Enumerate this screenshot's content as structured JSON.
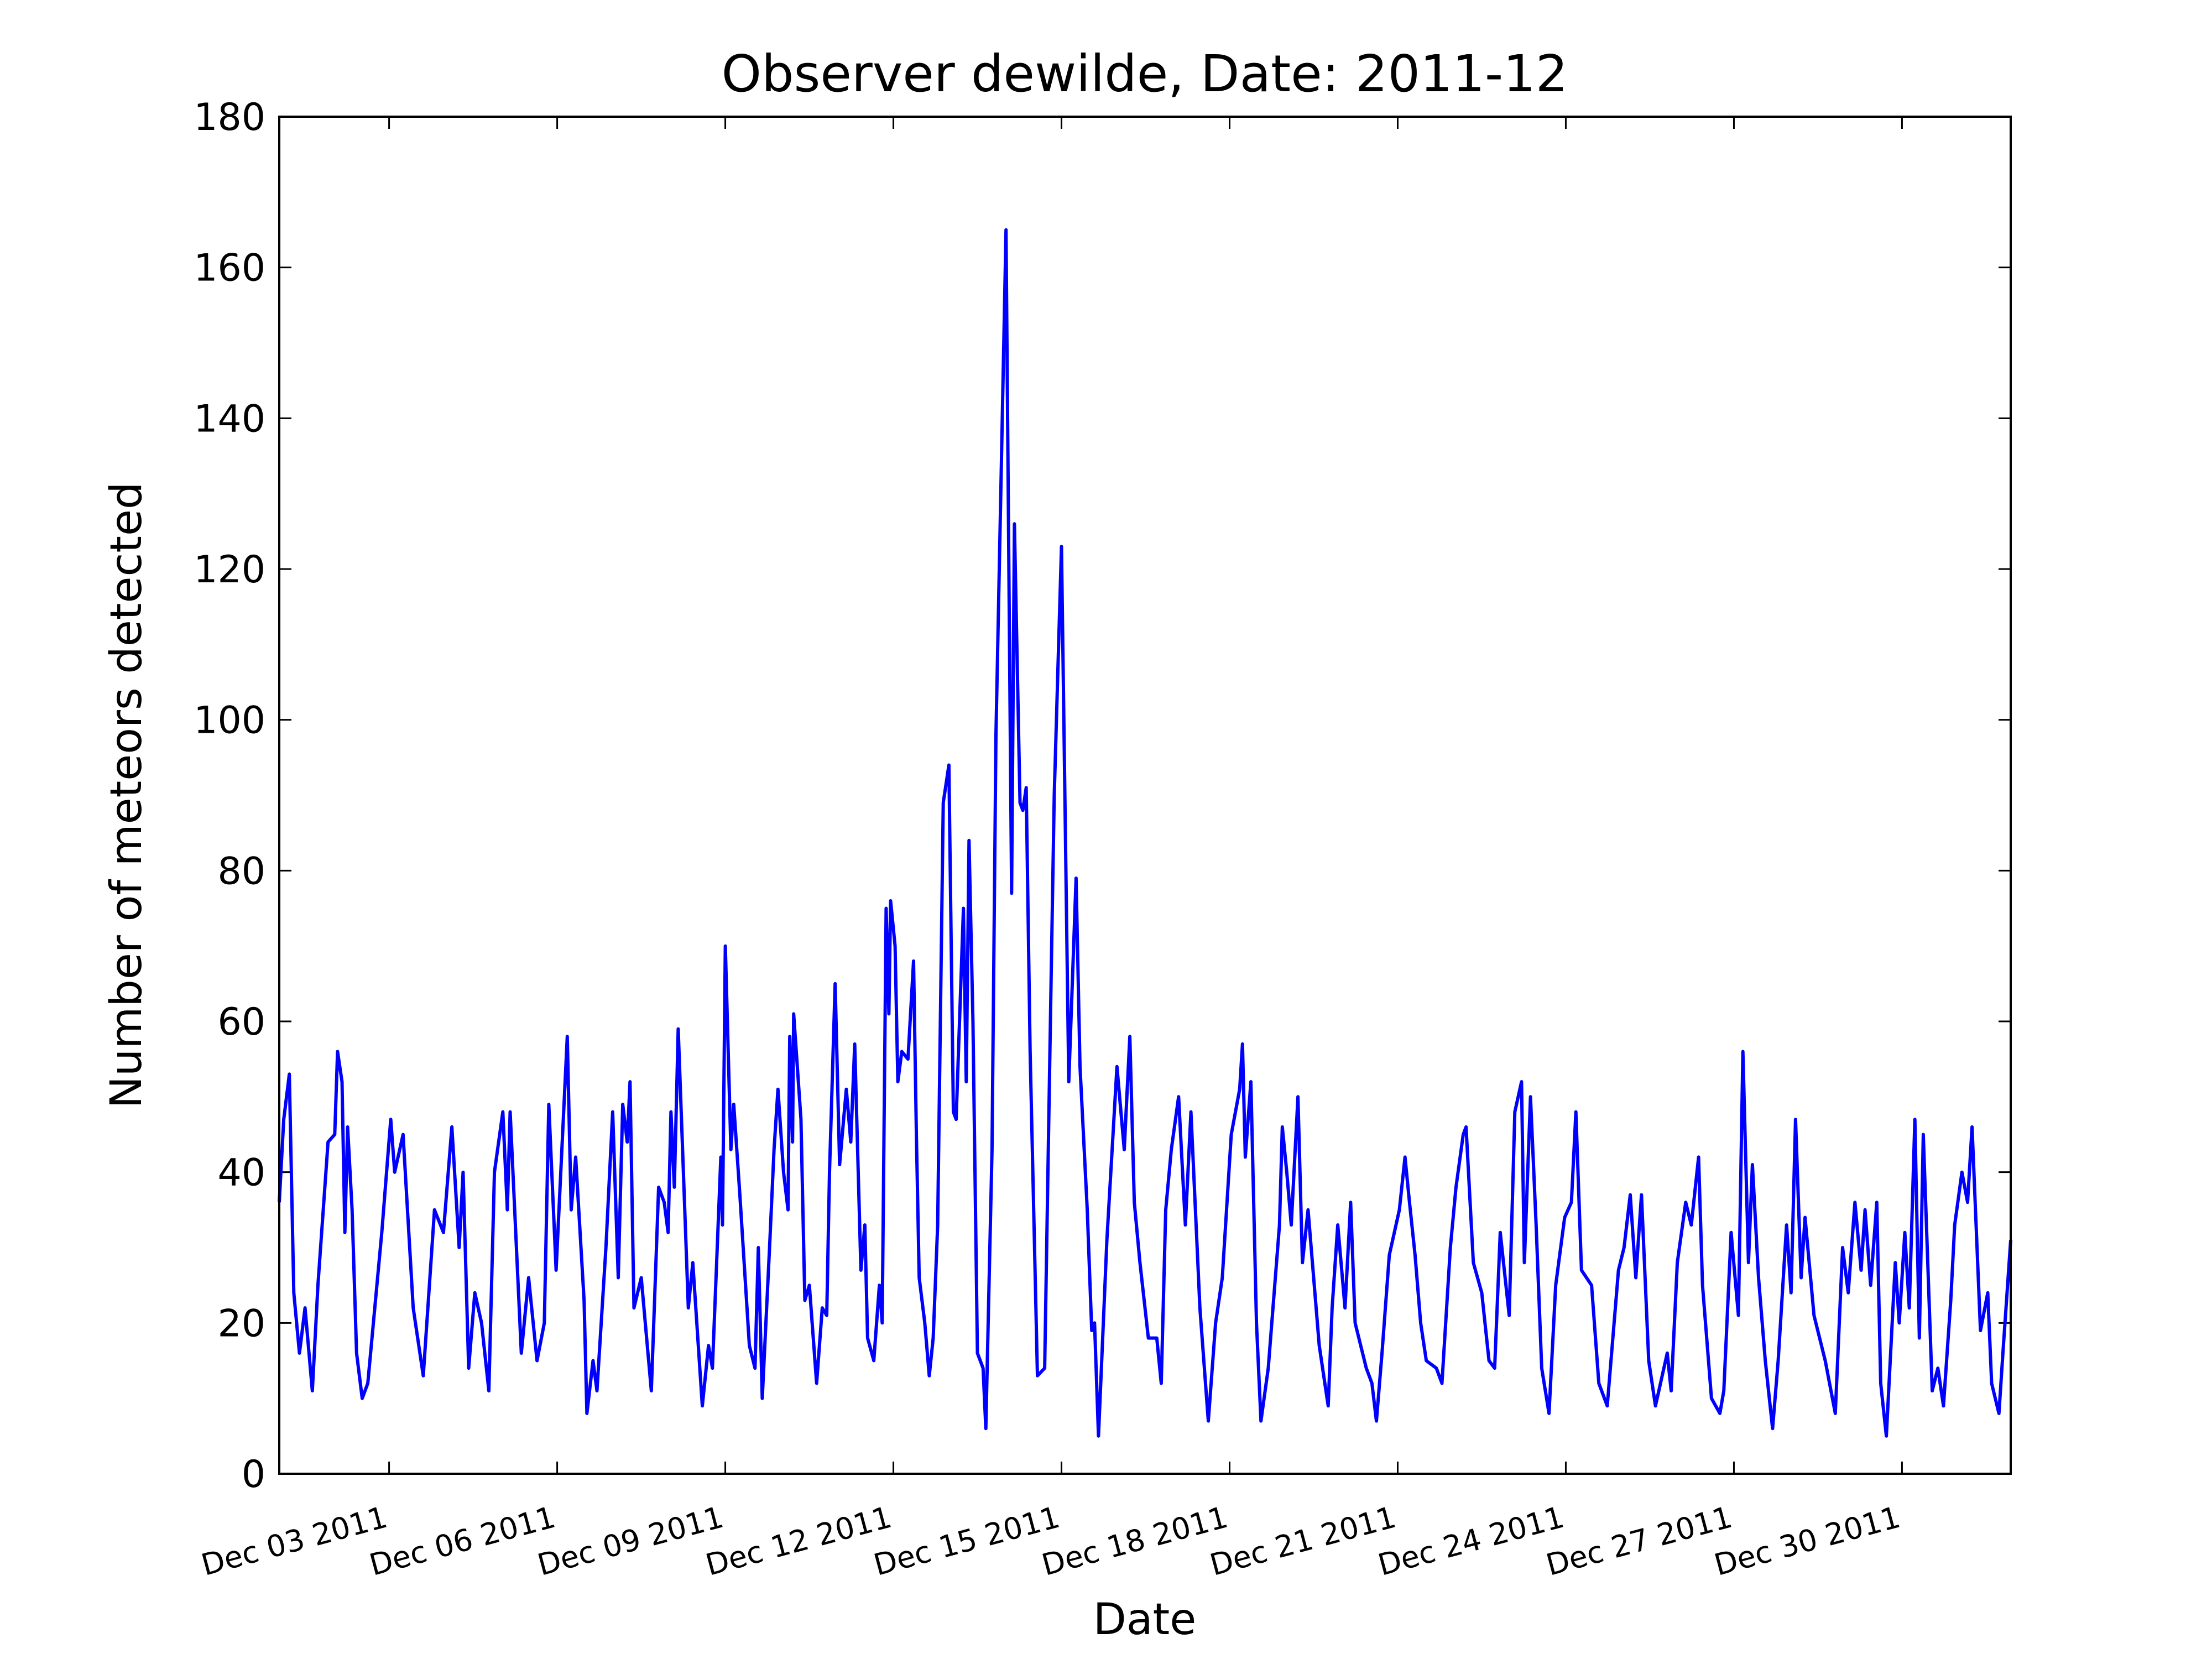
{
  "chart_data": {
    "type": "line",
    "title": "Observer dewilde, Date: 2011-12",
    "x_label": "Date",
    "y_label": "Number of meteors detected",
    "color": "#0000ff",
    "xlim": [
      1.04,
      31.94
    ],
    "ylim": [
      0,
      180
    ],
    "xticks": [
      {
        "value": 3,
        "label": "Dec 03 2011"
      },
      {
        "value": 6,
        "label": "Dec 06 2011"
      },
      {
        "value": 9,
        "label": "Dec 09 2011"
      },
      {
        "value": 12,
        "label": "Dec 12 2011"
      },
      {
        "value": 15,
        "label": "Dec 15 2011"
      },
      {
        "value": 18,
        "label": "Dec 18 2011"
      },
      {
        "value": 21,
        "label": "Dec 21 2011"
      },
      {
        "value": 24,
        "label": "Dec 24 2011"
      },
      {
        "value": 27,
        "label": "Dec 27 2011"
      },
      {
        "value": 30,
        "label": "Dec 30 2011"
      }
    ],
    "yticks": [
      0,
      20,
      40,
      60,
      80,
      100,
      120,
      140,
      160,
      180
    ],
    "x": [
      1.04,
      1.12,
      1.22,
      1.3,
      1.4,
      1.5,
      1.63,
      1.73,
      1.91,
      2.03,
      2.08,
      2.16,
      2.21,
      2.26,
      2.34,
      2.42,
      2.52,
      2.62,
      2.72,
      2.87,
      3.03,
      3.1,
      3.25,
      3.43,
      3.61,
      3.81,
      3.97,
      4.12,
      4.25,
      4.32,
      4.42,
      4.53,
      4.65,
      4.78,
      4.88,
      5.03,
      5.11,
      5.16,
      5.36,
      5.49,
      5.64,
      5.77,
      5.85,
      5.98,
      6.18,
      6.25,
      6.33,
      6.48,
      6.53,
      6.64,
      6.71,
      6.87,
      6.99,
      7.09,
      7.17,
      7.25,
      7.3,
      7.37,
      7.5,
      7.68,
      7.81,
      7.91,
      7.98,
      8.03,
      8.09,
      8.16,
      8.34,
      8.42,
      8.59,
      8.7,
      8.77,
      8.92,
      8.95,
      9.0,
      9.1,
      9.15,
      9.26,
      9.43,
      9.53,
      9.59,
      9.66,
      9.79,
      9.87,
      9.94,
      10.04,
      10.12,
      10.15,
      10.2,
      10.22,
      10.35,
      10.42,
      10.5,
      10.63,
      10.73,
      10.81,
      10.86,
      10.96,
      11.04,
      11.16,
      11.24,
      11.31,
      11.42,
      11.49,
      11.54,
      11.65,
      11.75,
      11.8,
      11.87,
      11.92,
      11.95,
      12.03,
      12.08,
      12.15,
      12.26,
      12.36,
      12.41,
      12.46,
      12.56,
      12.64,
      12.71,
      12.79,
      12.89,
      12.99,
      13.07,
      13.12,
      13.25,
      13.3,
      13.35,
      13.42,
      13.5,
      13.6,
      13.65,
      13.76,
      13.83,
      13.93,
      14.01,
      14.11,
      14.16,
      14.26,
      14.31,
      14.37,
      14.44,
      14.57,
      14.7,
      14.82,
      14.87,
      15.0,
      15.13,
      15.26,
      15.33,
      15.46,
      15.54,
      15.59,
      15.66,
      15.81,
      15.99,
      16.12,
      16.22,
      16.3,
      16.4,
      16.55,
      16.7,
      16.78,
      16.86,
      16.96,
      17.09,
      17.21,
      17.31,
      17.47,
      17.62,
      17.75,
      17.87,
      18.03,
      18.18,
      18.23,
      18.28,
      18.38,
      18.48,
      18.56,
      18.69,
      18.89,
      18.94,
      19.02,
      19.1,
      19.22,
      19.3,
      19.4,
      19.6,
      19.76,
      19.83,
      19.93,
      20.06,
      20.16,
      20.24,
      20.34,
      20.44,
      20.54,
      20.62,
      20.72,
      20.85,
      21.03,
      21.13,
      21.21,
      21.31,
      21.41,
      21.51,
      21.69,
      21.79,
      21.94,
      22.04,
      22.17,
      22.22,
      22.35,
      22.5,
      22.63,
      22.73,
      22.83,
      22.99,
      23.09,
      23.21,
      23.26,
      23.37,
      23.47,
      23.57,
      23.7,
      23.82,
      23.98,
      24.1,
      24.18,
      24.28,
      24.46,
      24.59,
      24.74,
      24.94,
      25.04,
      25.15,
      25.25,
      25.35,
      25.48,
      25.6,
      25.81,
      25.88,
      25.99,
      26.14,
      26.24,
      26.37,
      26.44,
      26.6,
      26.75,
      26.82,
      26.95,
      27.08,
      27.16,
      27.26,
      27.33,
      27.44,
      27.56,
      27.69,
      27.79,
      27.94,
      28.02,
      28.1,
      28.2,
      28.27,
      28.43,
      28.63,
      28.81,
      28.94,
      29.04,
      29.16,
      29.27,
      29.34,
      29.44,
      29.55,
      29.62,
      29.72,
      29.88,
      29.95,
      30.05,
      30.13,
      30.23,
      30.31,
      30.38,
      30.54,
      30.64,
      30.74,
      30.87,
      30.94,
      31.07,
      31.17,
      31.25,
      31.4,
      31.53,
      31.6,
      31.73,
      31.81,
      31.94
    ],
    "values": [
      36,
      47,
      53,
      24,
      16,
      22,
      11,
      25,
      44,
      45,
      56,
      52,
      32,
      46,
      35,
      16,
      10,
      12,
      20,
      32,
      47,
      40,
      45,
      22,
      13,
      35,
      32,
      46,
      30,
      40,
      14,
      24,
      20,
      11,
      40,
      48,
      35,
      48,
      16,
      26,
      15,
      20,
      49,
      27,
      58,
      35,
      42,
      23,
      8,
      15,
      11,
      30,
      48,
      26,
      49,
      44,
      52,
      22,
      26,
      11,
      38,
      36,
      32,
      48,
      38,
      59,
      22,
      28,
      9,
      17,
      14,
      42,
      33,
      70,
      43,
      49,
      37,
      17,
      14,
      30,
      10,
      30,
      43,
      51,
      40,
      35,
      58,
      44,
      61,
      47,
      23,
      25,
      12,
      22,
      21,
      40,
      65,
      41,
      51,
      44,
      57,
      27,
      33,
      18,
      15,
      25,
      20,
      75,
      61,
      76,
      70,
      52,
      56,
      55,
      68,
      45,
      26,
      20,
      13,
      18,
      33,
      89,
      94,
      48,
      47,
      75,
      52,
      84,
      60,
      16,
      14,
      6,
      43,
      98,
      135,
      165,
      77,
      126,
      89,
      88,
      91,
      56,
      13,
      14,
      68,
      90,
      123,
      52,
      79,
      54,
      35,
      19,
      20,
      5,
      31,
      54,
      43,
      58,
      36,
      28,
      18,
      18,
      12,
      35,
      43,
      50,
      33,
      48,
      22,
      7,
      20,
      26,
      45,
      51,
      57,
      42,
      52,
      20,
      7,
      14,
      33,
      46,
      40,
      33,
      50,
      28,
      35,
      17,
      9,
      22,
      33,
      22,
      36,
      20,
      17,
      14,
      12,
      7,
      16,
      29,
      35,
      42,
      36,
      29,
      20,
      15,
      14,
      12,
      30,
      38,
      45,
      46,
      28,
      24,
      15,
      14,
      32,
      21,
      48,
      52,
      28,
      50,
      33,
      14,
      8,
      25,
      34,
      36,
      48,
      27,
      25,
      12,
      9,
      27,
      30,
      37,
      26,
      37,
      15,
      9,
      16,
      11,
      28,
      36,
      33,
      42,
      25,
      10,
      8,
      11,
      32,
      21,
      56,
      28,
      41,
      26,
      15,
      6,
      15,
      33,
      24,
      47,
      26,
      34,
      21,
      15,
      8,
      30,
      24,
      36,
      27,
      35,
      25,
      36,
      12,
      5,
      28,
      20,
      32,
      22,
      47,
      18,
      45,
      11,
      14,
      9,
      23,
      33,
      40,
      36,
      46,
      19,
      24,
      12,
      8,
      17,
      31
    ]
  }
}
